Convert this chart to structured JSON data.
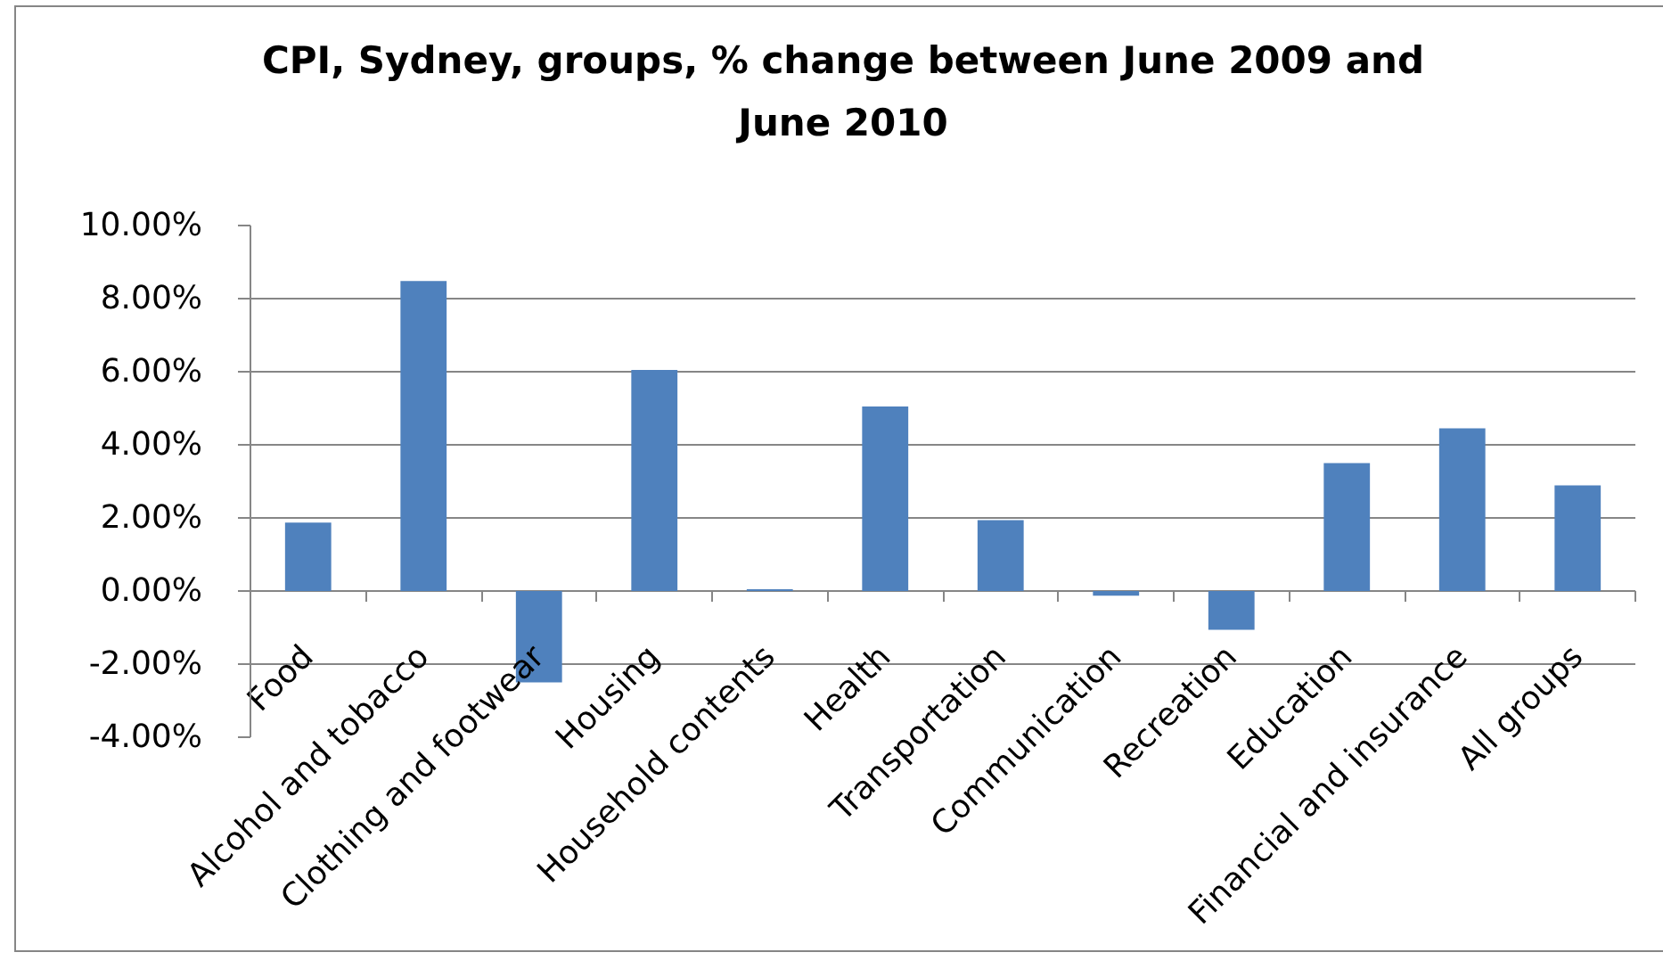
{
  "chart_data": {
    "type": "bar",
    "title": "CPI, Sydney, groups, % change between June 2009 and June 2010",
    "categories": [
      "Food",
      "Alcohol and tobacco",
      "Clothing and footwear",
      "Housing",
      "Household contents",
      "Health",
      "Transportation",
      "Communication",
      "Recreation",
      "Education",
      "Financial and insurance",
      "All groups"
    ],
    "values": [
      1.87,
      8.48,
      -2.5,
      6.05,
      0.05,
      5.05,
      1.94,
      -0.13,
      -1.06,
      3.5,
      4.45,
      2.89
    ],
    "color": "#4f81bd",
    "ylim": [
      -4,
      10
    ],
    "yticks": [
      {
        "value": -4,
        "label": "-4.00%"
      },
      {
        "value": -2,
        "label": "-2.00%"
      },
      {
        "value": 0,
        "label": "0.00%"
      },
      {
        "value": 2,
        "label": "2.00%"
      },
      {
        "value": 4,
        "label": "4.00%"
      },
      {
        "value": 6,
        "label": "6.00%"
      },
      {
        "value": 8,
        "label": "8.00%"
      },
      {
        "value": 10,
        "label": "10.00%"
      }
    ],
    "grid": "y"
  }
}
